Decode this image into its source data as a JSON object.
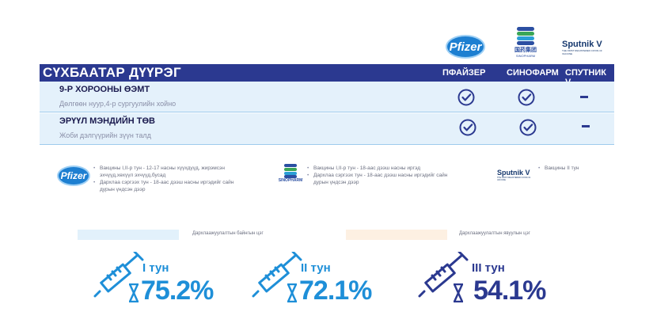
{
  "vendors": {
    "pfizer": {
      "logo_text": "Pfizer"
    },
    "sinopharm": {
      "logo_cn": "国药集团",
      "logo_en": "SINOPHARM"
    },
    "sputnik": {
      "logo_text": "Sputnik V",
      "logo_sub": "THE FIRST REGISTERED COVID-19 VACCINE"
    }
  },
  "table": {
    "district": "СҮХБААТАР ДҮҮРЭГ",
    "columns": [
      "ПФАЙЗЕР",
      "СИНОФАРМ",
      "СПУТНИК V"
    ],
    "rows": [
      {
        "name": "9-Р ХОРООНЫ ӨЭМТ",
        "address": "Дөлгөөн нуур,4-р сургуулийн хойно",
        "pfizer": "check",
        "sinopharm": "check",
        "sputnik": "dash"
      },
      {
        "name": "ЭРҮҮЛ МЭНДИЙН ТӨВ",
        "address": "Жоби дэлгүүрийн зүүн талд",
        "pfizer": "check",
        "sinopharm": "check",
        "sputnik": "dash"
      }
    ]
  },
  "info": {
    "pfizer": [
      "Вакцины I,II-р тун - 12-17 насны хүүхдүүд, жирэмсэн эхчүүд,хөхүүл эхчүүд,бусад",
      "Дархлаа сэргээх тун - 18-аас дээш насны иргэдийг сайн дурын үндсэн дээр"
    ],
    "sinopharm": [
      "Вакцины I,II-р тун - 18-аас дээш насны иргэд",
      "Дархлаа сэргээх тун - 18-аас дээш насны иргэдийг сайн дурын үндсэн дээр"
    ],
    "sputnik": [
      "Вакцины II тун"
    ]
  },
  "legend": {
    "permanent": "Дархлаажуулалтын байнгын цэг",
    "mobile": "Дархлаажуулалтын явуулын цэг"
  },
  "doses": [
    {
      "label": "I тун",
      "percent": "75.2%",
      "value": 75.2,
      "color": "#1e8fd8"
    },
    {
      "label": "II тун",
      "percent": "72.1%",
      "value": 72.1,
      "color": "#1e8fd8"
    },
    {
      "label": "III тун",
      "percent": "54.1%",
      "value": 54.1,
      "color": "#2b3990"
    }
  ],
  "colors": {
    "header": "#2b3990",
    "row_bg": "#e4f1fb",
    "accent_blue": "#1e8fd8",
    "navy": "#2b3990",
    "legend_permanent": "#e2f1fb",
    "legend_mobile": "#fdf0e2"
  }
}
